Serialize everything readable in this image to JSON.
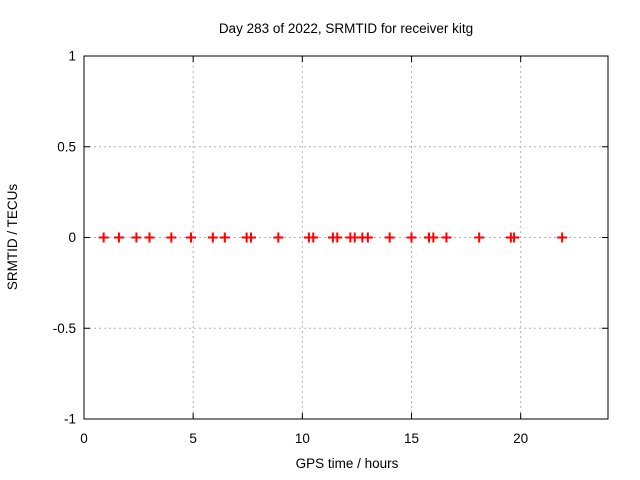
{
  "chart_data": {
    "type": "scatter",
    "title": "Day 283 of 2022, SRMTID for receiver kitg",
    "xlabel": "GPS time / hours",
    "ylabel": "SRMTID / TECUs",
    "xlim": [
      0,
      24
    ],
    "ylim": [
      -1,
      1
    ],
    "xticks": {
      "values": [
        0,
        5,
        10,
        15,
        20
      ],
      "labels": [
        "0",
        "5",
        "10",
        "15",
        "20"
      ]
    },
    "yticks": {
      "values": [
        -1,
        -0.5,
        0,
        0.5,
        1
      ],
      "labels": [
        "-1",
        "-0.5",
        "0",
        "0.5",
        "1"
      ]
    },
    "grid": true,
    "legend": "none",
    "colors": {
      "marker": "#ff0000",
      "grid": "#b3b3b3",
      "axis": "#000000",
      "background": "#ffffff"
    },
    "series": [
      {
        "name": "SRMTID",
        "marker": "plus",
        "x": [
          0.9,
          1.6,
          2.4,
          3.0,
          4.0,
          4.9,
          5.9,
          6.45,
          7.45,
          7.65,
          8.9,
          10.3,
          10.5,
          11.4,
          11.6,
          12.2,
          12.4,
          12.75,
          13.0,
          14.0,
          15.0,
          15.8,
          16.0,
          16.6,
          18.1,
          19.55,
          19.7,
          21.9
        ],
        "y": [
          0,
          0,
          0,
          0,
          0,
          0,
          0,
          0,
          0,
          0,
          0,
          0,
          0,
          0,
          0,
          0,
          0,
          0,
          0,
          0,
          0,
          0,
          0,
          0,
          0,
          0,
          0,
          0
        ]
      }
    ]
  }
}
